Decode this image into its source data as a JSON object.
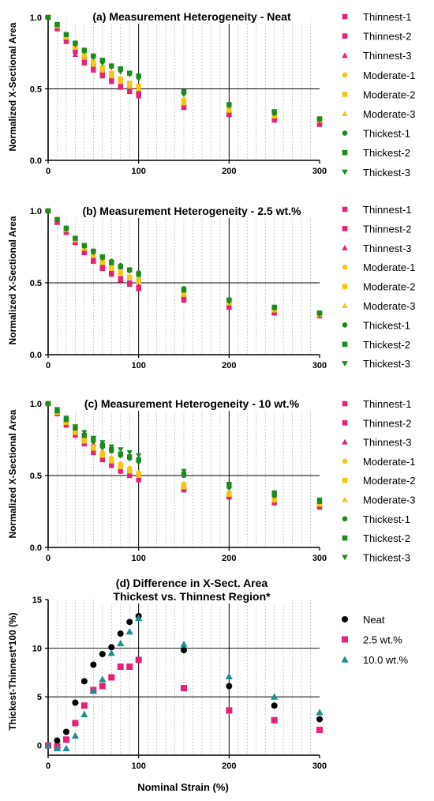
{
  "x_axis_label": "Nominal Strain (%)",
  "chart_data": [
    {
      "type": "scatter",
      "title": "(a) Measurement Heterogeneity - Neat",
      "ylabel": "Normalized X-Sectional Area",
      "xlabel": "",
      "xlim": [
        0,
        300
      ],
      "ylim": [
        0,
        1.0
      ],
      "x_ticks": [
        "0",
        "100",
        "200",
        "300"
      ],
      "y_ticks": [
        "0.0",
        "0.5",
        "1.0"
      ],
      "grid": "vertical minor lines every 10 %, major lines at 100 and 200, horizontal line at 0.5",
      "legend_position": "right",
      "x": [
        0,
        10,
        20,
        30,
        40,
        50,
        60,
        70,
        80,
        90,
        100,
        150,
        200,
        250,
        300
      ],
      "series": [
        {
          "name": "Thinnest-1",
          "color": "#e8207a",
          "marker": "square",
          "values": [
            1.0,
            0.92,
            0.84,
            0.76,
            0.69,
            0.64,
            0.6,
            0.56,
            0.52,
            0.49,
            0.46,
            0.37,
            0.32,
            0.29,
            0.26
          ]
        },
        {
          "name": "Thinnest-2",
          "color": "#e8207a",
          "marker": "square",
          "values": [
            1.0,
            0.93,
            0.85,
            0.78,
            0.71,
            0.66,
            0.61,
            0.57,
            0.53,
            0.5,
            0.47,
            0.38,
            0.33,
            0.3,
            0.27
          ]
        },
        {
          "name": "Thinnest-3",
          "color": "#e8207a",
          "marker": "triangle-up",
          "values": [
            1.0,
            0.92,
            0.83,
            0.74,
            0.68,
            0.63,
            0.59,
            0.55,
            0.51,
            0.48,
            0.45,
            0.37,
            0.32,
            0.28,
            0.25
          ]
        },
        {
          "name": "Moderate-1",
          "color": "#f2c811",
          "marker": "circle",
          "values": [
            1.0,
            0.94,
            0.86,
            0.79,
            0.73,
            0.68,
            0.64,
            0.6,
            0.56,
            0.53,
            0.51,
            0.41,
            0.35,
            0.31,
            0.28
          ]
        },
        {
          "name": "Moderate-2",
          "color": "#f2c811",
          "marker": "square",
          "values": [
            1.0,
            0.94,
            0.87,
            0.8,
            0.74,
            0.69,
            0.65,
            0.61,
            0.57,
            0.54,
            0.52,
            0.42,
            0.36,
            0.32,
            0.29
          ]
        },
        {
          "name": "Moderate-3",
          "color": "#f2c811",
          "marker": "triangle-up",
          "values": [
            1.0,
            0.94,
            0.86,
            0.79,
            0.72,
            0.67,
            0.63,
            0.59,
            0.55,
            0.52,
            0.5,
            0.4,
            0.35,
            0.31,
            0.28
          ]
        },
        {
          "name": "Thickest-1",
          "color": "#1e8a1e",
          "marker": "circle",
          "values": [
            1.0,
            0.95,
            0.88,
            0.82,
            0.77,
            0.73,
            0.69,
            0.66,
            0.63,
            0.61,
            0.58,
            0.47,
            0.39,
            0.33,
            0.29
          ]
        },
        {
          "name": "Thickest-2",
          "color": "#1e8a1e",
          "marker": "square",
          "values": [
            1.0,
            0.95,
            0.88,
            0.82,
            0.77,
            0.73,
            0.7,
            0.66,
            0.64,
            0.61,
            0.59,
            0.48,
            0.39,
            0.34,
            0.29
          ]
        },
        {
          "name": "Thickest-3",
          "color": "#1e8a1e",
          "marker": "triangle-down",
          "values": [
            1.0,
            0.95,
            0.88,
            0.81,
            0.76,
            0.72,
            0.68,
            0.65,
            0.62,
            0.6,
            0.57,
            0.46,
            0.38,
            0.33,
            0.28
          ]
        }
      ]
    },
    {
      "type": "scatter",
      "title": "(b) Measurement Heterogeneity - 2.5 wt.%",
      "ylabel": "Normalized X-Sectional Area",
      "xlabel": "",
      "xlim": [
        0,
        300
      ],
      "ylim": [
        0,
        1.0
      ],
      "x_ticks": [
        "0",
        "100",
        "200",
        "300"
      ],
      "y_ticks": [
        "0.0",
        "0.5",
        "1.0"
      ],
      "grid": "vertical minor lines every 10 %, major lines at 100 and 200, horizontal line at 0.5",
      "legend_position": "right",
      "x": [
        0,
        10,
        20,
        30,
        40,
        50,
        60,
        70,
        80,
        90,
        100,
        150,
        200,
        250,
        300
      ],
      "series": [
        {
          "name": "Thinnest-1",
          "color": "#e8207a",
          "marker": "square",
          "values": [
            1.0,
            0.92,
            0.85,
            0.78,
            0.71,
            0.65,
            0.6,
            0.56,
            0.52,
            0.49,
            0.46,
            0.38,
            0.33,
            0.29,
            0.27
          ]
        },
        {
          "name": "Thinnest-2",
          "color": "#e8207a",
          "marker": "square",
          "values": [
            1.0,
            0.93,
            0.86,
            0.79,
            0.72,
            0.66,
            0.61,
            0.57,
            0.53,
            0.5,
            0.47,
            0.39,
            0.34,
            0.3,
            0.28
          ]
        },
        {
          "name": "Thinnest-3",
          "color": "#e8207a",
          "marker": "triangle-up",
          "values": [
            1.0,
            0.92,
            0.85,
            0.78,
            0.71,
            0.65,
            0.6,
            0.56,
            0.52,
            0.49,
            0.46,
            0.38,
            0.33,
            0.29,
            0.27
          ]
        },
        {
          "name": "Moderate-1",
          "color": "#f2c811",
          "marker": "circle",
          "values": [
            1.0,
            0.94,
            0.87,
            0.8,
            0.74,
            0.69,
            0.64,
            0.6,
            0.57,
            0.54,
            0.51,
            0.42,
            0.36,
            0.31,
            0.28
          ]
        },
        {
          "name": "Moderate-2",
          "color": "#f2c811",
          "marker": "square",
          "values": [
            1.0,
            0.94,
            0.87,
            0.8,
            0.74,
            0.69,
            0.65,
            0.61,
            0.57,
            0.54,
            0.52,
            0.42,
            0.36,
            0.32,
            0.28
          ]
        },
        {
          "name": "Moderate-3",
          "color": "#f2c811",
          "marker": "triangle-up",
          "values": [
            1.0,
            0.94,
            0.87,
            0.8,
            0.74,
            0.69,
            0.64,
            0.6,
            0.57,
            0.54,
            0.51,
            0.42,
            0.36,
            0.31,
            0.28
          ]
        },
        {
          "name": "Thickest-1",
          "color": "#1e8a1e",
          "marker": "circle",
          "values": [
            1.0,
            0.94,
            0.88,
            0.81,
            0.76,
            0.72,
            0.68,
            0.65,
            0.62,
            0.59,
            0.57,
            0.46,
            0.38,
            0.33,
            0.29
          ]
        },
        {
          "name": "Thickest-2",
          "color": "#1e8a1e",
          "marker": "square",
          "values": [
            1.0,
            0.94,
            0.88,
            0.81,
            0.76,
            0.72,
            0.68,
            0.64,
            0.61,
            0.59,
            0.56,
            0.45,
            0.38,
            0.33,
            0.29
          ]
        },
        {
          "name": "Thickest-3",
          "color": "#1e8a1e",
          "marker": "triangle-down",
          "values": [
            1.0,
            0.94,
            0.87,
            0.81,
            0.75,
            0.71,
            0.67,
            0.64,
            0.61,
            0.58,
            0.56,
            0.45,
            0.37,
            0.32,
            0.28
          ]
        }
      ]
    },
    {
      "type": "scatter",
      "title": "(c) Measurement Heterogeneity - 10 wt.%",
      "ylabel": "Normalized X-Sectional Area",
      "xlabel": "",
      "xlim": [
        0,
        300
      ],
      "ylim": [
        0,
        1.0
      ],
      "x_ticks": [
        "0",
        "100",
        "200",
        "300"
      ],
      "y_ticks": [
        "0.0",
        "0.5",
        "1.0"
      ],
      "grid": "vertical minor lines every 10 %, major lines at 100 and 200, horizontal line at 0.5",
      "legend_position": "right",
      "x": [
        0,
        10,
        20,
        30,
        40,
        50,
        60,
        70,
        80,
        90,
        100,
        150,
        200,
        250,
        300
      ],
      "series": [
        {
          "name": "Thinnest-1",
          "color": "#e8207a",
          "marker": "square",
          "values": [
            1.0,
            0.93,
            0.85,
            0.78,
            0.72,
            0.66,
            0.61,
            0.57,
            0.53,
            0.5,
            0.47,
            0.4,
            0.35,
            0.31,
            0.28
          ]
        },
        {
          "name": "Thinnest-2",
          "color": "#e8207a",
          "marker": "square",
          "values": [
            1.0,
            0.94,
            0.87,
            0.8,
            0.75,
            0.69,
            0.64,
            0.59,
            0.55,
            0.52,
            0.49,
            0.41,
            0.36,
            0.32,
            0.29
          ]
        },
        {
          "name": "Thinnest-3",
          "color": "#e8207a",
          "marker": "triangle-up",
          "values": [
            1.0,
            0.93,
            0.86,
            0.81,
            0.77,
            0.72,
            0.67,
            0.62,
            0.58,
            0.55,
            0.51,
            0.42,
            0.37,
            0.33,
            0.3
          ]
        },
        {
          "name": "Moderate-1",
          "color": "#f2c811",
          "marker": "circle",
          "values": [
            1.0,
            0.94,
            0.87,
            0.81,
            0.75,
            0.7,
            0.66,
            0.62,
            0.58,
            0.55,
            0.52,
            0.44,
            0.38,
            0.34,
            0.31
          ]
        },
        {
          "name": "Moderate-2",
          "color": "#f2c811",
          "marker": "square",
          "values": [
            1.0,
            0.94,
            0.87,
            0.8,
            0.74,
            0.69,
            0.65,
            0.61,
            0.57,
            0.54,
            0.51,
            0.43,
            0.37,
            0.33,
            0.3
          ]
        },
        {
          "name": "Moderate-3",
          "color": "#f2c811",
          "marker": "triangle-up",
          "values": [
            1.0,
            0.94,
            0.87,
            0.8,
            0.74,
            0.69,
            0.64,
            0.6,
            0.56,
            0.53,
            0.5,
            0.42,
            0.37,
            0.33,
            0.3
          ]
        },
        {
          "name": "Thickest-1",
          "color": "#1e8a1e",
          "marker": "circle",
          "values": [
            1.0,
            0.95,
            0.89,
            0.83,
            0.78,
            0.74,
            0.7,
            0.67,
            0.64,
            0.62,
            0.6,
            0.5,
            0.42,
            0.36,
            0.32
          ]
        },
        {
          "name": "Thickest-2",
          "color": "#1e8a1e",
          "marker": "square",
          "values": [
            1.0,
            0.95,
            0.89,
            0.83,
            0.78,
            0.75,
            0.71,
            0.68,
            0.65,
            0.63,
            0.61,
            0.51,
            0.43,
            0.37,
            0.32
          ]
        },
        {
          "name": "Thickest-3",
          "color": "#1e8a1e",
          "marker": "triangle-down",
          "values": [
            1.0,
            0.96,
            0.9,
            0.84,
            0.8,
            0.76,
            0.73,
            0.7,
            0.68,
            0.66,
            0.64,
            0.53,
            0.44,
            0.38,
            0.33
          ]
        }
      ]
    },
    {
      "type": "scatter",
      "title": "(d) Difference in X-Sect. Area",
      "subtitle": "Thickest vs. Thinnest Region*",
      "ylabel": "Thickest-Thinnest*100 (%)",
      "xlabel": "Nominal Strain (%)",
      "xlim": [
        0,
        300
      ],
      "ylim": [
        -1,
        15
      ],
      "x_ticks": [
        "0",
        "100",
        "200",
        "300"
      ],
      "y_ticks": [
        "0",
        "5",
        "10",
        "15"
      ],
      "grid": "vertical minor lines every 10 %, major lines at 100 and 200, horizontal lines at 5 and 10",
      "legend_position": "right",
      "x": [
        0,
        10,
        20,
        30,
        40,
        50,
        60,
        70,
        80,
        90,
        100,
        150,
        200,
        250,
        300
      ],
      "series": [
        {
          "name": "Neat",
          "color": "#000000",
          "marker": "circle",
          "values": [
            0.0,
            0.5,
            1.4,
            4.4,
            6.6,
            8.3,
            9.4,
            10.1,
            11.5,
            12.7,
            13.3,
            9.8,
            6.1,
            4.1,
            2.7
          ]
        },
        {
          "name": "2.5 wt.%",
          "color": "#e8207a",
          "marker": "square",
          "values": [
            0.0,
            -0.1,
            0.6,
            2.3,
            4.1,
            5.7,
            6.1,
            7.0,
            8.1,
            8.1,
            8.8,
            5.9,
            3.6,
            2.6,
            1.6
          ]
        },
        {
          "name": "10.0 wt.%",
          "color": "#1f8f8f",
          "marker": "triangle-up",
          "values": [
            0.0,
            -0.3,
            -0.3,
            1.0,
            3.2,
            5.6,
            6.8,
            9.5,
            10.5,
            11.7,
            13.1,
            10.4,
            7.1,
            5.0,
            3.4
          ]
        }
      ]
    }
  ]
}
